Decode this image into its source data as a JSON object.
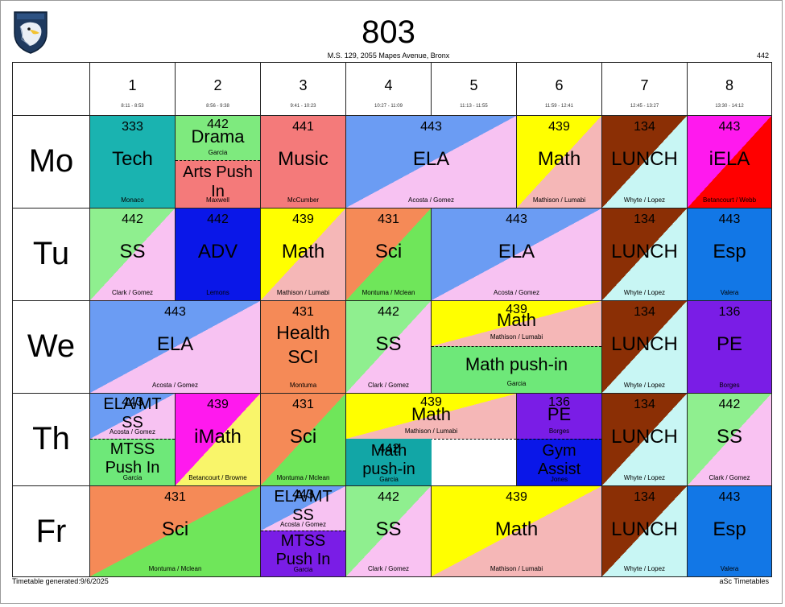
{
  "header": {
    "class_name": "803",
    "school": "M.S. 129, 2055 Mapes Avenue, Bronx",
    "home_room": "442"
  },
  "logo": {
    "icon": "eagle-crest-logo"
  },
  "periods": [
    {
      "num": "1",
      "time": "8:11 - 8:53"
    },
    {
      "num": "2",
      "time": "8:56 - 9:38"
    },
    {
      "num": "3",
      "time": "9:41 - 10:23"
    },
    {
      "num": "4",
      "time": "10:27 - 11:09"
    },
    {
      "num": "5",
      "time": "11:13 - 11:55"
    },
    {
      "num": "6",
      "time": "11:59 - 12:41"
    },
    {
      "num": "7",
      "time": "12:45 - 13:27"
    },
    {
      "num": "8",
      "time": "13:30 - 14:12"
    }
  ],
  "days": [
    "Mo",
    "Tu",
    "We",
    "Th",
    "Fr"
  ],
  "lessons": {
    "mo_tech": {
      "room": "333",
      "subject": "Tech",
      "teacher": "Monaco"
    },
    "mo_drama": {
      "room": "442",
      "subject": "Drama",
      "teacher": "Garcia"
    },
    "mo_arts": {
      "subject": "Arts Push In",
      "teacher": "Maxwell"
    },
    "mo_music": {
      "room": "441",
      "subject": "Music",
      "teacher": "McCumber"
    },
    "mo_ela": {
      "room": "443",
      "subject": "ELA",
      "teacher": "Acosta / Gomez"
    },
    "mo_math": {
      "room": "439",
      "subject": "Math",
      "teacher": "Mathison / Lumabi"
    },
    "mo_lunch": {
      "room": "134",
      "subject": "LUNCH",
      "teacher": "Whyte / Lopez"
    },
    "mo_iela": {
      "room": "443",
      "subject": "iELA",
      "teacher": "Betancourt / Webb"
    },
    "tu_ss": {
      "room": "442",
      "subject": "SS",
      "teacher": "Clark / Gomez"
    },
    "tu_adv": {
      "room": "442",
      "subject": "ADV",
      "teacher": "Lemons"
    },
    "tu_math": {
      "room": "439",
      "subject": "Math",
      "teacher": "Mathison / Lumabi"
    },
    "tu_sci": {
      "room": "431",
      "subject": "Sci",
      "teacher": "Montuma / Mclean"
    },
    "tu_ela": {
      "room": "443",
      "subject": "ELA",
      "teacher": "Acosta / Gomez"
    },
    "tu_lunch": {
      "room": "134",
      "subject": "LUNCH",
      "teacher": "Whyte / Lopez"
    },
    "tu_esp": {
      "room": "443",
      "subject": "Esp",
      "teacher": "Valera"
    },
    "we_ela": {
      "room": "443",
      "subject": "ELA",
      "teacher": "Acosta / Gomez"
    },
    "we_health": {
      "room": "431",
      "subject": "Health SCI",
      "teacher": "Montuma"
    },
    "we_ss": {
      "room": "442",
      "subject": "SS",
      "teacher": "Clark / Gomez"
    },
    "we_math": {
      "room": "439",
      "subject": "Math",
      "teacher": "Mathison / Lumabi"
    },
    "we_mathpush": {
      "subject": "Math push-in",
      "teacher": "Garcia"
    },
    "we_lunch": {
      "room": "134",
      "subject": "LUNCH",
      "teacher": "Whyte / Lopez"
    },
    "we_pe": {
      "room": "136",
      "subject": "PE",
      "teacher": "Borges"
    },
    "th_elamt": {
      "room": "443",
      "subject": "ELA/MT SS",
      "teacher": "Acosta / Gomez"
    },
    "th_mtss": {
      "subject": "MTSS Push In",
      "teacher": "Garcia"
    },
    "th_imath": {
      "room": "439",
      "subject": "iMath",
      "teacher": "Betancourt / Browne"
    },
    "th_sci": {
      "room": "431",
      "subject": "Sci",
      "teacher": "Montuma / Mclean"
    },
    "th_math": {
      "room": "439",
      "subject": "Math",
      "teacher": "Mathison / Lumabi"
    },
    "th_mathpush": {
      "room": "442",
      "subject": "Math push-in",
      "teacher": "Garcia"
    },
    "th_pe": {
      "room": "136",
      "subject": "PE",
      "teacher": "Borges"
    },
    "th_gym": {
      "subject": "Gym Assist",
      "teacher": "Jones"
    },
    "th_lunch": {
      "room": "134",
      "subject": "LUNCH",
      "teacher": "Whyte / Lopez"
    },
    "th_ss": {
      "room": "442",
      "subject": "SS",
      "teacher": "Clark / Gomez"
    },
    "fr_sci": {
      "room": "431",
      "subject": "Sci",
      "teacher": "Montuma / Mclean"
    },
    "fr_elamt": {
      "room": "443",
      "subject": "ELA/MT SS",
      "teacher": "Acosta / Gomez"
    },
    "fr_mtss": {
      "subject": "MTSS Push In",
      "teacher": "Garcia"
    },
    "fr_ss": {
      "room": "442",
      "subject": "SS",
      "teacher": "Clark / Gomez"
    },
    "fr_math": {
      "room": "439",
      "subject": "Math",
      "teacher": "Mathison / Lumabi"
    },
    "fr_lunch": {
      "room": "134",
      "subject": "LUNCH",
      "teacher": "Whyte / Lopez"
    },
    "fr_esp": {
      "room": "443",
      "subject": "Esp",
      "teacher": "Valera"
    }
  },
  "colors": {
    "tech": "#1ab3b0",
    "drama": "#7eea7e",
    "arts": "#f47a7a",
    "music": "#f47a7a",
    "ela_a": "#6b9cf3",
    "ela_b": "#f7c2f2",
    "math_a": "#ffff00",
    "math_b": "#f5b7b7",
    "lunch_a": "#8b2f05",
    "lunch_b": "#c8f6f4",
    "iela_a": "#ff19ee",
    "iela_b": "#ff0000",
    "ss_a": "#8fef8f",
    "ss_b": "#f9c2f2",
    "adv": "#0a17e8",
    "sci_a": "#f58a57",
    "sci_b": "#6fe65a",
    "esp": "#1277e6",
    "pe": "#7a1de6",
    "mathpush": "#6ee879",
    "th_mathpush": "#12a6a6",
    "gym": "#0a17e8",
    "mtss": "#7a1de6"
  },
  "footer": {
    "generated": "Timetable generated:9/6/2025",
    "brand": "aSc Timetables"
  }
}
